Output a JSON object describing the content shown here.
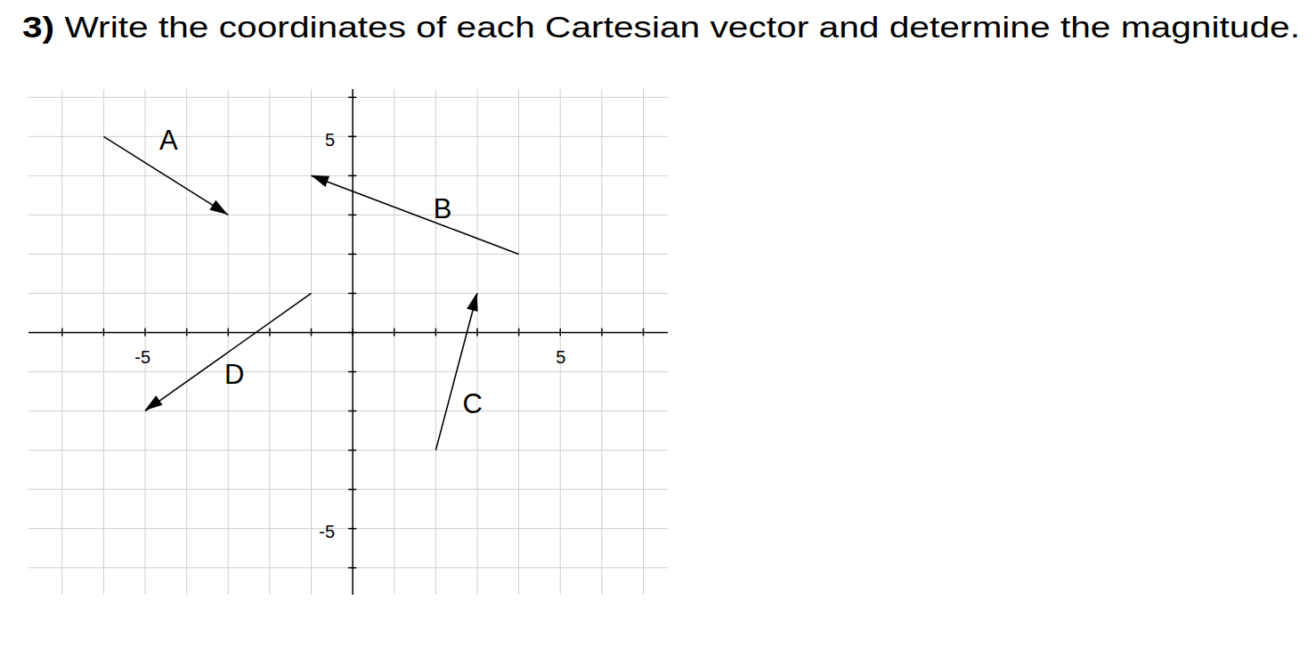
{
  "chart_data": {
    "type": "vector",
    "title": "3) Write the coordinates of each Cartesian vector and determine the magnitude.",
    "xlim": [
      -7.8,
      7.6
    ],
    "ylim": [
      -6.7,
      6.2
    ],
    "xticks": [
      -5,
      5
    ],
    "yticks": [
      -5,
      5
    ],
    "grid": true,
    "color": "#000000",
    "vectors": [
      {
        "name": "A",
        "from": [
          -6,
          5
        ],
        "to": [
          -3,
          3
        ]
      },
      {
        "name": "B",
        "from": [
          4,
          2
        ],
        "to": [
          -1,
          4
        ]
      },
      {
        "name": "C",
        "from": [
          2,
          -3
        ],
        "to": [
          3,
          1
        ]
      },
      {
        "name": "D",
        "from": [
          -1,
          1
        ],
        "to": [
          -5,
          -2
        ]
      }
    ]
  }
}
